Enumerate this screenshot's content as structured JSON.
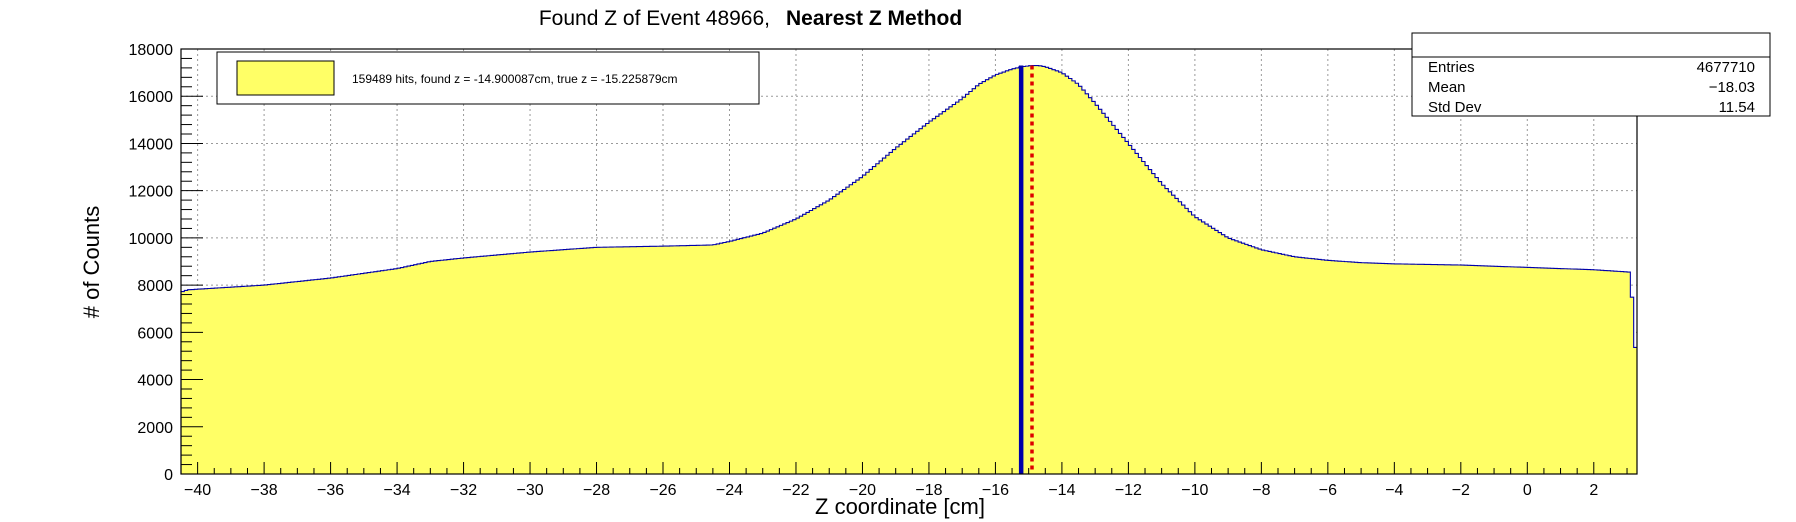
{
  "chart_data": {
    "type": "bar",
    "title": "Found Z of Event 48966,",
    "title_bold": "Nearest Z Method",
    "xlabel": "Z coordinate [cm]",
    "ylabel": "# of Counts",
    "xlim": [
      -40.5,
      3.3
    ],
    "ylim": [
      0,
      18000
    ],
    "x_ticks": [
      -40,
      -38,
      -36,
      -34,
      -32,
      -30,
      -28,
      -26,
      -24,
      -22,
      -20,
      -18,
      -16,
      -14,
      -12,
      -10,
      -8,
      -6,
      -4,
      -2,
      0,
      2
    ],
    "x_tick_labels": [
      "−40",
      "−38",
      "−36",
      "−34",
      "−32",
      "−30",
      "−28",
      "−26",
      "−24",
      "−22",
      "−20",
      "−18",
      "−16",
      "−14",
      "−12",
      "−10",
      "−8",
      "−6",
      "−4",
      "−2",
      "0",
      "2"
    ],
    "y_ticks": [
      0,
      2000,
      4000,
      6000,
      8000,
      10000,
      12000,
      14000,
      16000,
      18000
    ],
    "y_tick_labels": [
      "0",
      "2000",
      "4000",
      "6000",
      "8000",
      "10000",
      "12000",
      "14000",
      "16000",
      "18000"
    ],
    "grid": true,
    "fill_color": "#ffff66",
    "line_color": "#0000aa",
    "histogram_profile": {
      "x": [
        -40.5,
        -40.3,
        -38,
        -36,
        -34,
        -33,
        -32,
        -30,
        -28,
        -26,
        -24.5,
        -24,
        -23,
        -22,
        -21,
        -20,
        -19,
        -18,
        -17,
        -16.5,
        -16,
        -15.5,
        -15.2,
        -14.9,
        -14.7,
        -14.5,
        -14,
        -13.5,
        -13,
        -12,
        -11,
        -10,
        -9,
        -8,
        -7,
        -6,
        -5,
        -4,
        -2,
        0,
        2,
        3.1,
        3.3
      ],
      "y": [
        7700,
        7800,
        8000,
        8300,
        8700,
        9000,
        9150,
        9400,
        9600,
        9650,
        9700,
        9850,
        10200,
        10800,
        11600,
        12600,
        13800,
        14900,
        15900,
        16500,
        16900,
        17150,
        17250,
        17300,
        17300,
        17250,
        17000,
        16500,
        15700,
        14000,
        12300,
        10900,
        10000,
        9500,
        9200,
        9050,
        8950,
        8900,
        8850,
        8750,
        8650,
        8550,
        4300
      ]
    },
    "markers": [
      {
        "name": "found z",
        "x": -14.900087,
        "color": "#dd0000",
        "style": "dotted"
      },
      {
        "name": "true z",
        "x": -15.225879,
        "color": "#0000aa",
        "style": "solid"
      }
    ],
    "legend": {
      "placement": "top-left",
      "label": "159489 hits, found z = -14.900087cm, true z = -15.225879cm"
    },
    "stats": {
      "placement": "top-right",
      "rows": [
        {
          "label": "Entries",
          "value": "4677710"
        },
        {
          "label": "Mean",
          "value": "−18.03"
        },
        {
          "label": "Std Dev",
          "value": "11.54"
        }
      ]
    }
  }
}
